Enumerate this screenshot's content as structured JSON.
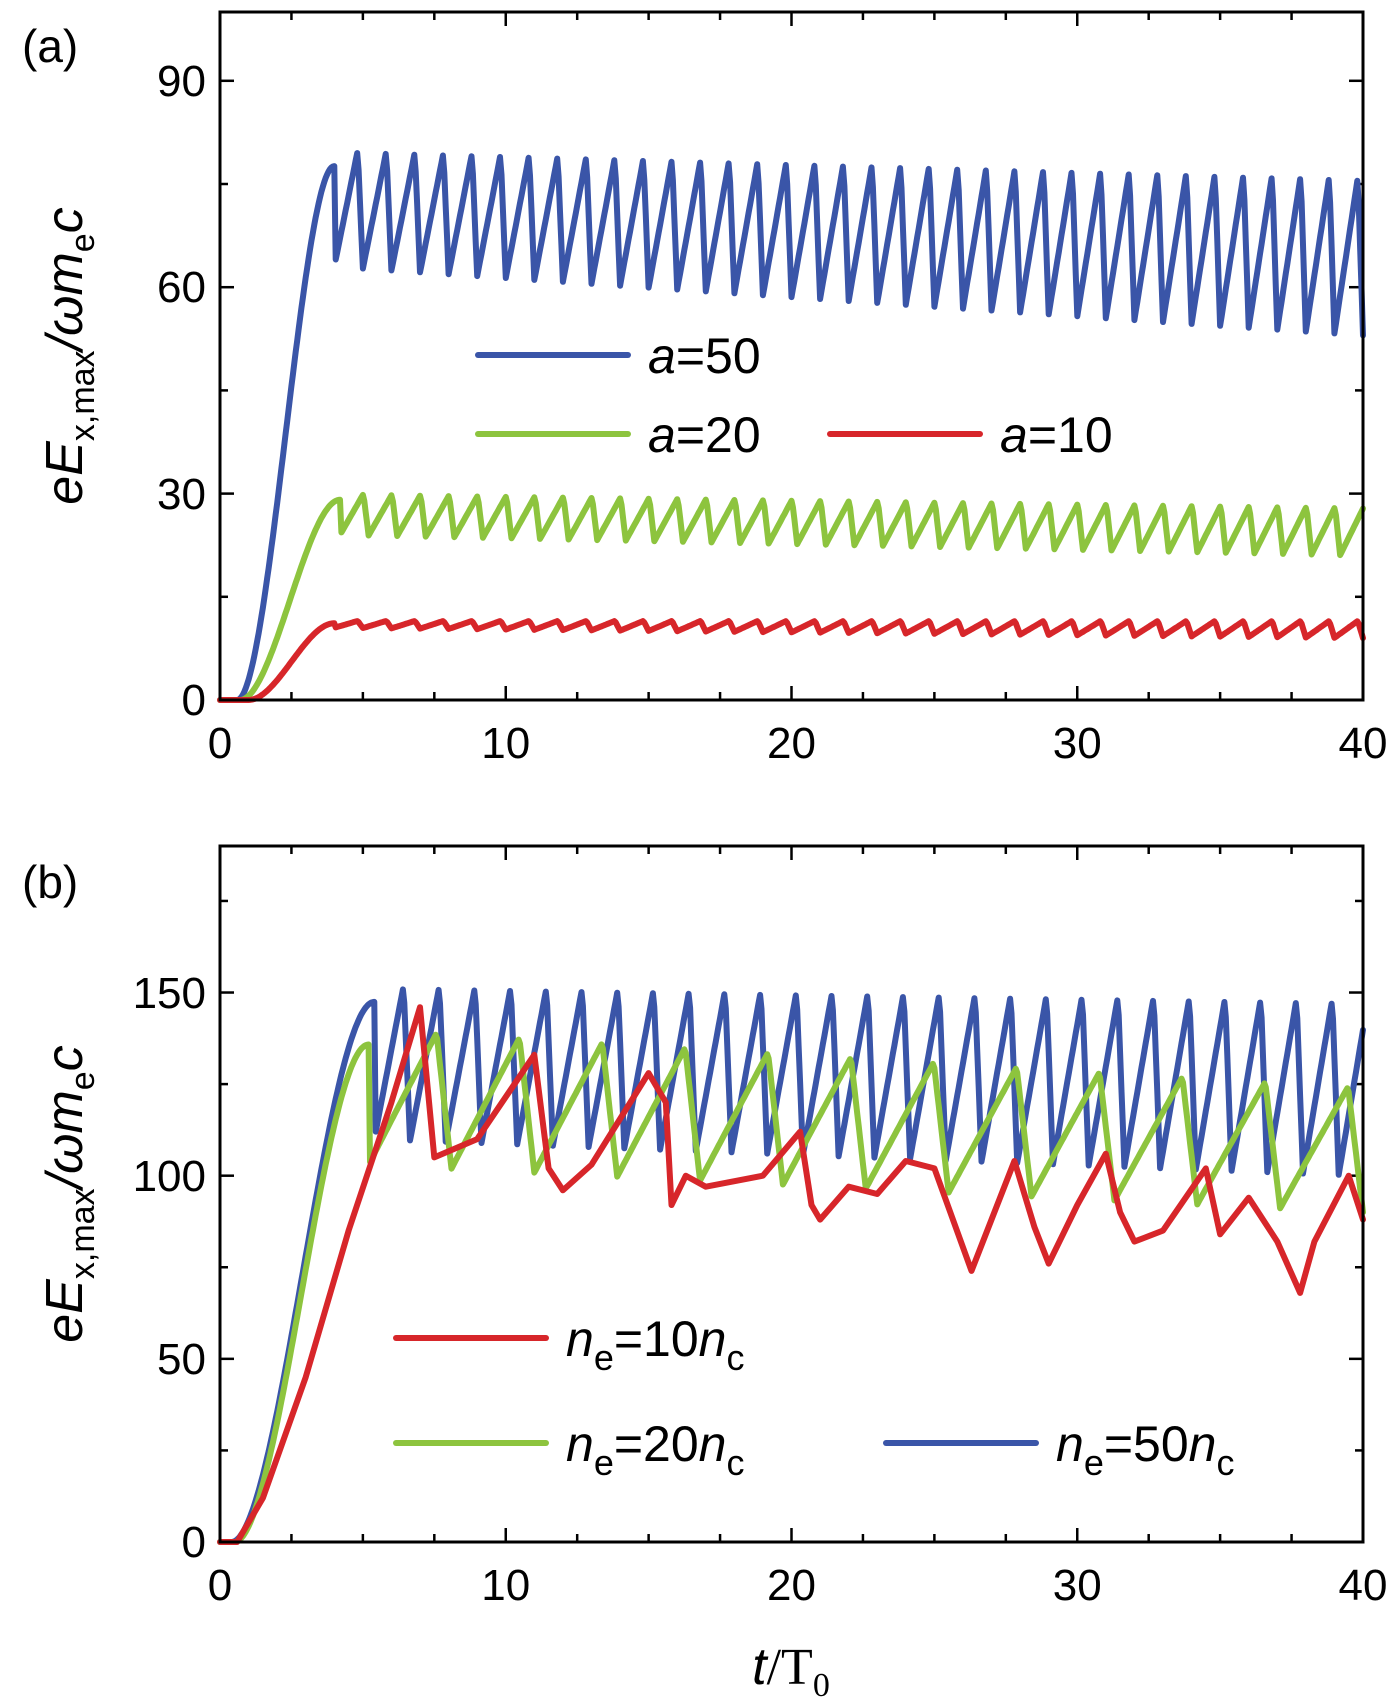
{
  "colors": {
    "blue": "#3a55a8",
    "green": "#8dc43e",
    "red": "#d7262a"
  },
  "chart_data": [
    {
      "panel_label": "(a)",
      "type": "line",
      "ylabel_main": "eE",
      "ylabel_sub": "x,max",
      "ylabel_tail": "/ωm",
      "ylabel_sub2": "e",
      "ylabel_end": "c",
      "xlim": [
        0,
        40
      ],
      "ylim": [
        0,
        100
      ],
      "xticks": [
        "0",
        "10",
        "20",
        "30",
        "40"
      ],
      "yticks": [
        {
          "v": 0,
          "label": "0"
        },
        {
          "v": 30,
          "label": "30"
        },
        {
          "v": 60,
          "label": "60"
        },
        {
          "v": 90,
          "label": "90"
        }
      ],
      "series": [
        {
          "legend_label": "a=50",
          "var": "a",
          "rest": "=50",
          "color": "blue",
          "t0": 0.6,
          "rise": 4.0,
          "period": 1.0,
          "high": 80,
          "low": 63,
          "high_end": 76,
          "low_end": 53
        },
        {
          "legend_label": "a=20",
          "var": "a",
          "rest": "=20",
          "color": "green",
          "t0": 0.7,
          "rise": 4.2,
          "period": 1.0,
          "high": 30,
          "low": 24,
          "high_end": 28,
          "low_end": 21
        },
        {
          "legend_label": "a=10",
          "var": "a",
          "rest": "=10",
          "color": "red",
          "t0": 1.0,
          "rise": 4.0,
          "period": 1.0,
          "high": 11.5,
          "low": 10.5,
          "high_end": 11.5,
          "low_end": 9
        }
      ]
    },
    {
      "panel_label": "(b)",
      "type": "line",
      "ylabel_main": "eE",
      "ylabel_sub": "x,max",
      "ylabel_tail": "/ωm",
      "ylabel_sub2": "e",
      "ylabel_end": "c",
      "xlabel_main": "t",
      "xlabel_tail": "/T",
      "xlabel_sub": "0",
      "xlim": [
        0,
        40
      ],
      "ylim": [
        0,
        190
      ],
      "xticks": [
        "0",
        "10",
        "20",
        "30",
        "40"
      ],
      "yticks": [
        {
          "v": 0,
          "label": "0"
        },
        {
          "v": 50,
          "label": "50"
        },
        {
          "v": 100,
          "label": "100"
        },
        {
          "v": 150,
          "label": "150"
        }
      ],
      "series": [
        {
          "legend_label": "ne=10nc",
          "var": "n",
          "sub": "e",
          "rest": "=10",
          "var2": "n",
          "sub2": "c",
          "color": "red",
          "points": [
            [
              0,
              0
            ],
            [
              0.6,
              0
            ],
            [
              1.5,
              12
            ],
            [
              3,
              45
            ],
            [
              4.5,
              85
            ],
            [
              6,
              120
            ],
            [
              7,
              146
            ],
            [
              7.5,
              105
            ],
            [
              9,
              110
            ],
            [
              11,
              133
            ],
            [
              11.5,
              102
            ],
            [
              12,
              96
            ],
            [
              13,
              103
            ],
            [
              15,
              128
            ],
            [
              15.6,
              120
            ],
            [
              15.8,
              92
            ],
            [
              16.3,
              100
            ],
            [
              17,
              97
            ],
            [
              19,
              100
            ],
            [
              20.3,
              112
            ],
            [
              20.7,
              92
            ],
            [
              21,
              88
            ],
            [
              22,
              97
            ],
            [
              23,
              95
            ],
            [
              24,
              104
            ],
            [
              25,
              102
            ],
            [
              26.3,
              74
            ],
            [
              27,
              88
            ],
            [
              27.8,
              104
            ],
            [
              28.5,
              86
            ],
            [
              29,
              76
            ],
            [
              30,
              92
            ],
            [
              31,
              106
            ],
            [
              31.5,
              90
            ],
            [
              32,
              82
            ],
            [
              33,
              85
            ],
            [
              34.5,
              102
            ],
            [
              35,
              84
            ],
            [
              36,
              94
            ],
            [
              37,
              82
            ],
            [
              37.8,
              68
            ],
            [
              38.3,
              82
            ],
            [
              39.5,
              100
            ],
            [
              40,
              88
            ]
          ]
        },
        {
          "legend_label": "ne=20nc",
          "var": "n",
          "sub": "e",
          "rest": "=20",
          "var2": "n",
          "sub2": "c",
          "color": "green",
          "t0": 0.5,
          "rise": 5.2,
          "period": 2.9,
          "high": 140,
          "low": 103,
          "high_end": 124,
          "low_end": 90
        },
        {
          "legend_label": "ne=50nc",
          "var": "n",
          "sub": "e",
          "rest": "=50",
          "var2": "n",
          "sub2": "c",
          "color": "blue",
          "t0": 0.4,
          "rise": 5.4,
          "period": 1.25,
          "high": 152,
          "low": 110,
          "high_end": 148,
          "low_end": 100
        }
      ]
    }
  ]
}
